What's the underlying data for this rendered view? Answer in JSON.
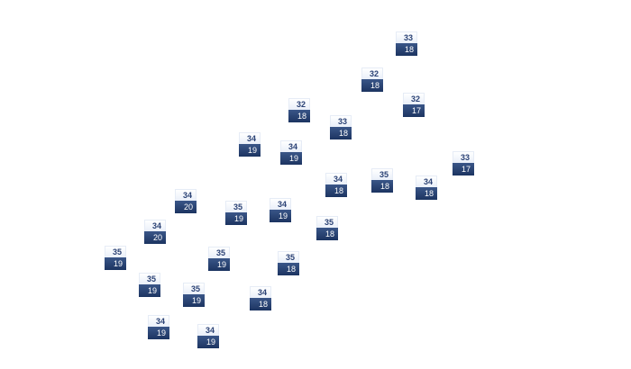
{
  "markers": [
    {
      "top": "33",
      "bottom": "18"
    },
    {
      "top": "32",
      "bottom": "18"
    },
    {
      "top": "32",
      "bottom": "17"
    },
    {
      "top": "32",
      "bottom": "18"
    },
    {
      "top": "33",
      "bottom": "18"
    },
    {
      "top": "34",
      "bottom": "19"
    },
    {
      "top": "34",
      "bottom": "19"
    },
    {
      "top": "33",
      "bottom": "17"
    },
    {
      "top": "35",
      "bottom": "18"
    },
    {
      "top": "34",
      "bottom": "18"
    },
    {
      "top": "34",
      "bottom": "18"
    },
    {
      "top": "34",
      "bottom": "20"
    },
    {
      "top": "35",
      "bottom": "19"
    },
    {
      "top": "34",
      "bottom": "19"
    },
    {
      "top": "34",
      "bottom": "20"
    },
    {
      "top": "35",
      "bottom": "18"
    },
    {
      "top": "35",
      "bottom": "19"
    },
    {
      "top": "35",
      "bottom": "19"
    },
    {
      "top": "35",
      "bottom": "18"
    },
    {
      "top": "35",
      "bottom": "19"
    },
    {
      "top": "35",
      "bottom": "19"
    },
    {
      "top": "34",
      "bottom": "18"
    },
    {
      "top": "34",
      "bottom": "19"
    },
    {
      "top": "34",
      "bottom": "19"
    }
  ],
  "colors": {
    "marker_top_text": "#2b4275",
    "marker_bottom_bg": "#1c3461"
  }
}
